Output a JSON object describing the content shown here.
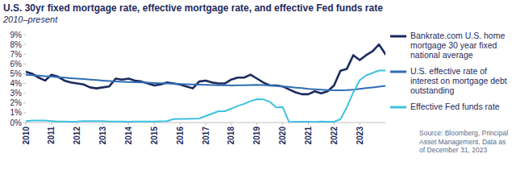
{
  "chart_data": {
    "type": "line",
    "title": "U.S. 30yr fixed mortgage rate, effective mortgage rate, and effective Fed funds rate",
    "subtitle": "2010–present",
    "source": "Source: Bloomberg, Principal Asset Management. Data as of December 31, 2023",
    "x": [
      2010,
      2010.25,
      2010.5,
      2010.75,
      2011,
      2011.25,
      2011.5,
      2011.75,
      2012,
      2012.25,
      2012.5,
      2012.75,
      2013,
      2013.25,
      2013.5,
      2013.75,
      2014,
      2014.25,
      2014.5,
      2014.75,
      2015,
      2015.25,
      2015.5,
      2015.75,
      2016,
      2016.25,
      2016.5,
      2016.75,
      2017,
      2017.25,
      2017.5,
      2017.75,
      2018,
      2018.25,
      2018.5,
      2018.75,
      2019,
      2019.25,
      2019.5,
      2019.75,
      2020,
      2020.25,
      2020.5,
      2020.75,
      2021,
      2021.25,
      2021.5,
      2021.75,
      2022,
      2022.25,
      2022.5,
      2022.75,
      2023,
      2023.25,
      2023.5,
      2023.75,
      2024
    ],
    "series": [
      {
        "name": "Bankrate.com U.S. home mortgage 30 year fixed national average",
        "color": "#1b2a5e",
        "values": [
          5.2,
          5.0,
          4.6,
          4.3,
          4.9,
          4.7,
          4.3,
          4.1,
          4.0,
          3.9,
          3.6,
          3.5,
          3.6,
          3.7,
          4.5,
          4.4,
          4.5,
          4.3,
          4.2,
          4.0,
          3.8,
          3.9,
          4.1,
          4.0,
          3.9,
          3.7,
          3.5,
          4.2,
          4.3,
          4.1,
          4.0,
          4.0,
          4.4,
          4.6,
          4.6,
          4.9,
          4.5,
          4.1,
          3.8,
          3.8,
          3.7,
          3.4,
          3.1,
          2.9,
          2.9,
          3.2,
          3.0,
          3.2,
          3.8,
          5.3,
          5.5,
          6.9,
          6.4,
          6.9,
          7.3,
          8.0,
          7.0
        ]
      },
      {
        "name": "U.S. effective rate of interest on mortgage debt outstanding",
        "color": "#2f6db5",
        "values": [
          4.9,
          4.85,
          4.8,
          4.75,
          4.7,
          4.65,
          4.6,
          4.55,
          4.5,
          4.45,
          4.4,
          4.35,
          4.3,
          4.26,
          4.22,
          4.18,
          4.15,
          4.12,
          4.1,
          4.08,
          4.05,
          4.02,
          4.0,
          3.98,
          3.95,
          3.92,
          3.9,
          3.88,
          3.85,
          3.83,
          3.82,
          3.81,
          3.8,
          3.81,
          3.82,
          3.84,
          3.85,
          3.83,
          3.8,
          3.75,
          3.7,
          3.65,
          3.58,
          3.52,
          3.45,
          3.4,
          3.36,
          3.33,
          3.3,
          3.3,
          3.32,
          3.36,
          3.45,
          3.53,
          3.6,
          3.68,
          3.75
        ]
      },
      {
        "name": "Effective Fed funds rate",
        "color": "#3fc1e0",
        "values": [
          0.15,
          0.2,
          0.2,
          0.2,
          0.15,
          0.1,
          0.1,
          0.08,
          0.1,
          0.15,
          0.15,
          0.15,
          0.15,
          0.1,
          0.1,
          0.1,
          0.08,
          0.1,
          0.1,
          0.1,
          0.1,
          0.12,
          0.14,
          0.35,
          0.37,
          0.38,
          0.4,
          0.41,
          0.66,
          0.91,
          1.16,
          1.16,
          1.42,
          1.7,
          1.91,
          2.2,
          2.4,
          2.38,
          2.12,
          1.55,
          1.58,
          0.05,
          0.09,
          0.09,
          0.08,
          0.07,
          0.1,
          0.08,
          0.08,
          0.33,
          1.58,
          3.08,
          4.33,
          4.83,
          5.08,
          5.33,
          5.33
        ]
      }
    ],
    "xlim": [
      2010,
      2024
    ],
    "xticks": [
      2010,
      2011,
      2012,
      2013,
      2014,
      2015,
      2016,
      2017,
      2018,
      2019,
      2020,
      2021,
      2022,
      2023
    ],
    "ylim": [
      0,
      9
    ],
    "yticks": [
      {
        "value": 0,
        "label": "0%"
      },
      {
        "value": 1,
        "label": "1%"
      },
      {
        "value": 2,
        "label": "2%"
      },
      {
        "value": 3,
        "label": "3%"
      },
      {
        "value": 4,
        "label": "4%"
      },
      {
        "value": 5,
        "label": "5%"
      },
      {
        "value": 6,
        "label": "6%"
      },
      {
        "value": 7,
        "label": "7%"
      },
      {
        "value": 8,
        "label": "8%"
      },
      {
        "value": 9,
        "label": "9%"
      }
    ],
    "grid": false,
    "legend": "right"
  }
}
